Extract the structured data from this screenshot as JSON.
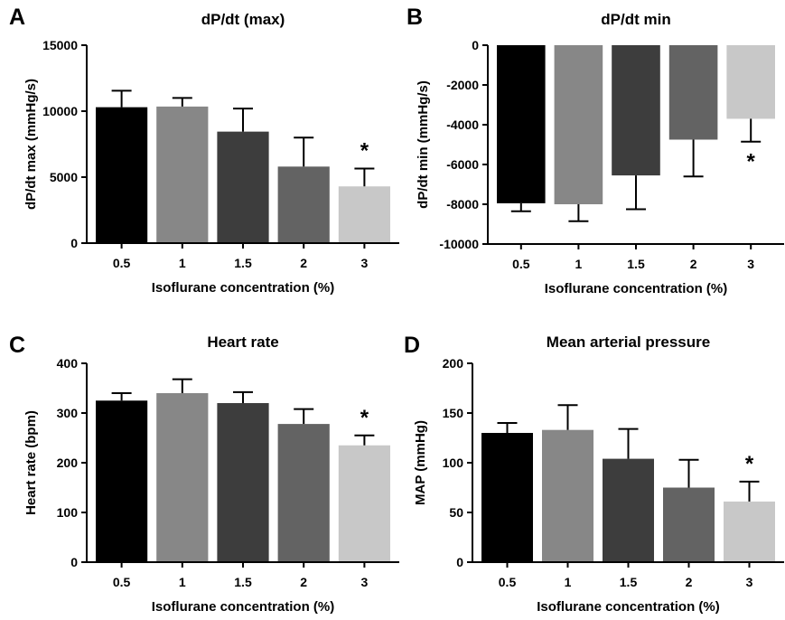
{
  "figure": {
    "panels": [
      "A",
      "B",
      "C",
      "D"
    ]
  },
  "bar_colors": [
    "#000000",
    "#878787",
    "#3d3d3d",
    "#636363",
    "#c8c8c8"
  ],
  "chart_data": [
    {
      "panel": "A",
      "type": "bar",
      "title": "dP/dt (max)",
      "xlabel": "Isoflurane concentration (%)",
      "ylabel": "dP/dt max (mmHg/s)",
      "categories": [
        "0.5",
        "1",
        "1.5",
        "2",
        "3"
      ],
      "values": [
        10300,
        10350,
        8450,
        5800,
        4300
      ],
      "errors": [
        1250,
        650,
        1750,
        2200,
        1350
      ],
      "ylim": [
        0,
        15000
      ],
      "yticks": [
        0,
        5000,
        10000,
        15000
      ],
      "significant": [
        false,
        false,
        false,
        false,
        true
      ],
      "significance_marker": "*",
      "grid": false
    },
    {
      "panel": "B",
      "type": "bar",
      "title": "dP/dt min",
      "xlabel": "Isoflurane concentration (%)",
      "ylabel": "dP/dt min (mmHg/s)",
      "categories": [
        "0.5",
        "1",
        "1.5",
        "2",
        "3"
      ],
      "values": [
        -7950,
        -8000,
        -6550,
        -4750,
        -3700
      ],
      "errors": [
        400,
        850,
        1700,
        1850,
        1150
      ],
      "ylim": [
        -10000,
        0
      ],
      "yticks": [
        -10000,
        -8000,
        -6000,
        -4000,
        -2000,
        0
      ],
      "significant": [
        false,
        false,
        false,
        false,
        true
      ],
      "significance_marker": "*",
      "grid": false
    },
    {
      "panel": "C",
      "type": "bar",
      "title": "Heart rate",
      "xlabel": "Isoflurane concentration (%)",
      "ylabel": "Heart rate (bpm)",
      "categories": [
        "0.5",
        "1",
        "1.5",
        "2",
        "3"
      ],
      "values": [
        325,
        340,
        320,
        278,
        235
      ],
      "errors": [
        15,
        28,
        22,
        30,
        20
      ],
      "ylim": [
        0,
        400
      ],
      "yticks": [
        0,
        100,
        200,
        300,
        400
      ],
      "significant": [
        false,
        false,
        false,
        false,
        true
      ],
      "significance_marker": "*",
      "grid": false
    },
    {
      "panel": "D",
      "type": "bar",
      "title": "Mean arterial pressure",
      "xlabel": "Isoflurane concentration (%)",
      "ylabel": "MAP (mmHg)",
      "categories": [
        "0.5",
        "1",
        "1.5",
        "2",
        "3"
      ],
      "values": [
        130,
        133,
        104,
        75,
        61
      ],
      "errors": [
        10,
        25,
        30,
        28,
        20
      ],
      "ylim": [
        0,
        200
      ],
      "yticks": [
        0,
        50,
        100,
        150,
        200
      ],
      "significant": [
        false,
        false,
        false,
        false,
        true
      ],
      "significance_marker": "*",
      "grid": false
    }
  ]
}
